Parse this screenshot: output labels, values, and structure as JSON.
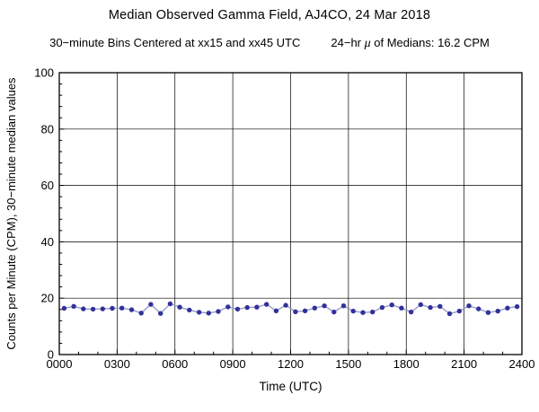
{
  "header": {
    "title": "Median Observed Gamma Field, AJ4CO, 24 Mar 2018",
    "subtitle_bins": "30−minute Bins Centered at xx15 and xx45 UTC",
    "subtitle_mean_prefix": "24−hr ",
    "subtitle_mean_mu": "μ",
    "subtitle_mean_suffix": " of Medians: 16.2 CPM"
  },
  "chart_data": {
    "type": "line",
    "title": "Median Observed Gamma Field, AJ4CO, 24 Mar 2018",
    "xlabel": "Time (UTC)",
    "ylabel": "Counts per Minute (CPM), 30−minute median values",
    "xlim_hours": [
      0,
      24
    ],
    "ylim": [
      0,
      100
    ],
    "x_major_ticks": [
      "0000",
      "0300",
      "0600",
      "0900",
      "1200",
      "1500",
      "1800",
      "2100",
      "2400"
    ],
    "x_major_tick_hours": [
      0,
      3,
      6,
      9,
      12,
      15,
      18,
      21,
      24
    ],
    "x_minor_tick_every_hours": 1,
    "y_major_ticks": [
      0,
      20,
      40,
      60,
      80,
      100
    ],
    "y_minor_tick_every": 4,
    "grid": true,
    "mean_of_medians_cpm": 16.2,
    "marker_color": "#31319b",
    "line_color": "#9a9ace",
    "frame_color": "#000000",
    "x_times": [
      "0015",
      "0045",
      "0115",
      "0145",
      "0215",
      "0245",
      "0315",
      "0345",
      "0415",
      "0445",
      "0515",
      "0545",
      "0615",
      "0645",
      "0715",
      "0745",
      "0815",
      "0845",
      "0915",
      "0945",
      "1015",
      "1045",
      "1115",
      "1145",
      "1215",
      "1245",
      "1315",
      "1345",
      "1415",
      "1445",
      "1515",
      "1545",
      "1615",
      "1645",
      "1715",
      "1745",
      "1815",
      "1845",
      "1915",
      "1945",
      "2015",
      "2045",
      "2115",
      "2145",
      "2215",
      "2245",
      "2315",
      "2345"
    ],
    "values": [
      16.4,
      17.1,
      16.2,
      16.1,
      16.2,
      16.4,
      16.5,
      15.9,
      14.7,
      17.8,
      14.6,
      18.0,
      16.8,
      15.8,
      15.0,
      14.7,
      15.3,
      16.9,
      16.1,
      16.7,
      16.8,
      17.8,
      15.5,
      17.5,
      15.2,
      15.5,
      16.5,
      17.3,
      15.1,
      17.3,
      15.4,
      14.9,
      15.1,
      16.7,
      17.6,
      16.5,
      15.1,
      17.7,
      16.7,
      17.1,
      14.5,
      15.4,
      17.3,
      16.2,
      14.9,
      15.4,
      16.5,
      17.0
    ]
  }
}
